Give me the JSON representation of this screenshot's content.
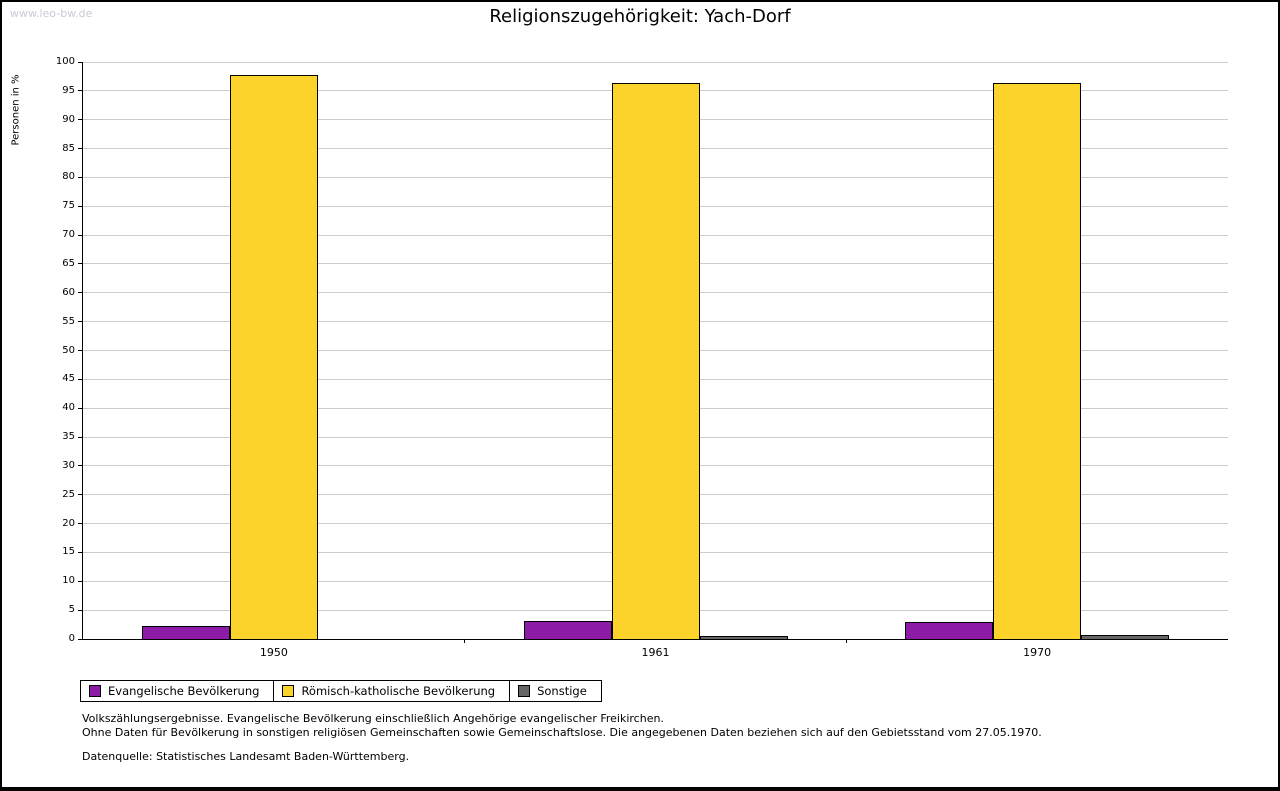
{
  "watermark": "www.leo-bw.de",
  "chart_data": {
    "type": "bar",
    "title": "Religionszugehörigkeit: Yach-Dorf",
    "ylabel": "Personen in %",
    "xlabel": "",
    "ylim": [
      0,
      100
    ],
    "yticks": [
      0,
      5,
      10,
      15,
      20,
      25,
      30,
      35,
      40,
      45,
      50,
      55,
      60,
      65,
      70,
      75,
      80,
      85,
      90,
      95,
      100
    ],
    "grid": true,
    "legend_position": "bottom",
    "categories": [
      "1950",
      "1961",
      "1970"
    ],
    "series": [
      {
        "name": "Evangelische Bevölkerung",
        "color": "#8c1ca8",
        "values": [
          2.3,
          3.2,
          3.0
        ]
      },
      {
        "name": "Römisch-katholische Bevölkerung",
        "color": "#fcd32b",
        "values": [
          97.7,
          96.4,
          96.3
        ]
      },
      {
        "name": "Sonstige",
        "color": "#666666",
        "values": [
          0,
          0.5,
          0.7
        ]
      }
    ]
  },
  "footnotes": {
    "line1": "Volkszählungsergebnisse. Evangelische Bevölkerung einschließlich Angehörige evangelischer Freikirchen.",
    "line2": "Ohne Daten für Bevölkerung in sonstigen religiösen Gemeinschaften sowie Gemeinschaftslose. Die angegebenen Daten beziehen sich auf den Gebietsstand vom 27.05.1970.",
    "source": "Datenquelle: Statistisches Landesamt Baden-Württemberg."
  }
}
